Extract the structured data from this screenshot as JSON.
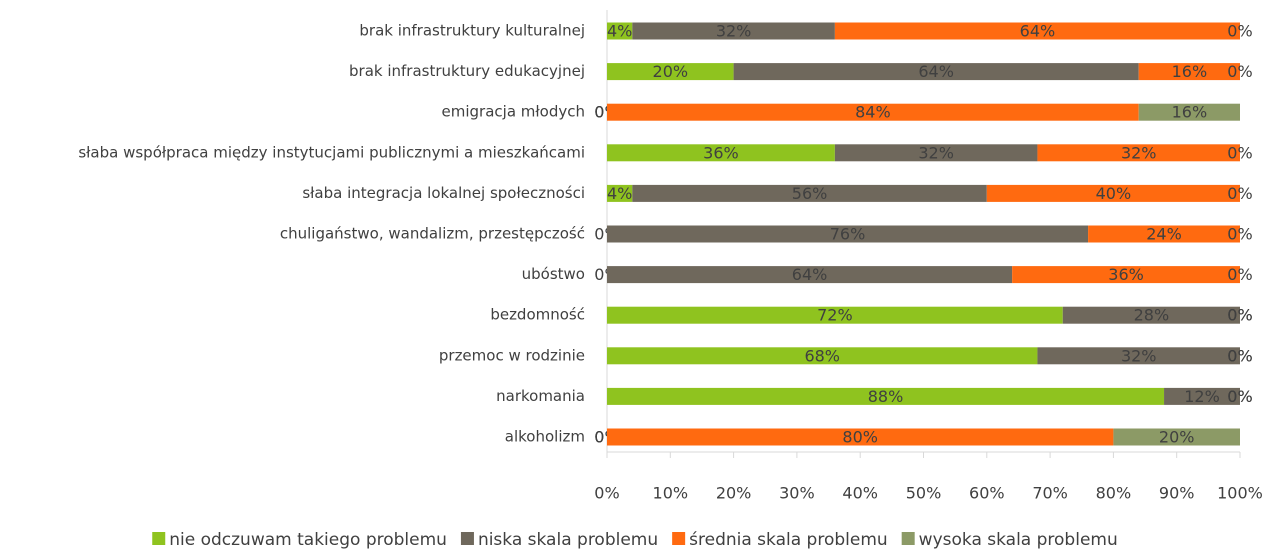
{
  "chart_data": {
    "type": "bar",
    "orientation": "horizontal",
    "stacked": true,
    "categories": [
      "brak infrastruktury kulturalnej",
      "brak infrastruktury edukacyjnej",
      "emigracja młodych",
      "słaba współpraca między instytucjami publicznymi a mieszkańcami",
      "słaba integracja lokalnej społeczności",
      "chuligaństwo, wandalizm, przestępczość",
      "ubóstwo",
      "bezdomność",
      "przemoc w rodzinie",
      "narkomania",
      "alkoholizm"
    ],
    "series": [
      {
        "name": "nie odczuwam takiego problemu",
        "color": "#8fc31f",
        "values": [
          4,
          20,
          0,
          36,
          4,
          0,
          0,
          72,
          68,
          88,
          0
        ],
        "value_labels": [
          "4%",
          "20%",
          "0%",
          "36%",
          "4%",
          "0%",
          "0%",
          "72%",
          "68%",
          "88%",
          "0%"
        ]
      },
      {
        "name": "niska skala problemu",
        "color": "#6f685c",
        "values": [
          32,
          64,
          0,
          32,
          56,
          76,
          64,
          28,
          32,
          12,
          0
        ],
        "value_labels": [
          "32%",
          "64%",
          "0%",
          "32%",
          "56%",
          "76%",
          "64%",
          "28%",
          "32%",
          "12%",
          "0%"
        ]
      },
      {
        "name": "średnia skala problemu",
        "color": "#ff6a10",
        "values": [
          64,
          16,
          84,
          32,
          40,
          24,
          36,
          0,
          0,
          0,
          80
        ],
        "value_labels": [
          "64%",
          "16%",
          "84%",
          "32%",
          "40%",
          "24%",
          "36%",
          "0%",
          "0%",
          "0%",
          "80%"
        ]
      },
      {
        "name": "wysoka skala problemu",
        "color": "#8c9a66",
        "values": [
          0,
          0,
          16,
          0,
          0,
          0,
          0,
          0,
          0,
          0,
          20
        ],
        "value_labels": [
          "0%",
          "0%",
          "16%",
          "0%",
          "0%",
          "0%",
          "0%",
          "0%",
          "0%",
          "0%",
          "20%"
        ]
      }
    ],
    "xlim": [
      0,
      100
    ],
    "xticks": [
      {
        "value": 0,
        "label": "0%"
      },
      {
        "value": 10,
        "label": "10%"
      },
      {
        "value": 20,
        "label": "20%"
      },
      {
        "value": 30,
        "label": "30%"
      },
      {
        "value": 40,
        "label": "40%"
      },
      {
        "value": 50,
        "label": "50%"
      },
      {
        "value": 60,
        "label": "60%"
      },
      {
        "value": 70,
        "label": "70%"
      },
      {
        "value": 80,
        "label": "80%"
      },
      {
        "value": 90,
        "label": "90%"
      },
      {
        "value": 100,
        "label": "100%"
      }
    ],
    "legend": "bottom"
  }
}
